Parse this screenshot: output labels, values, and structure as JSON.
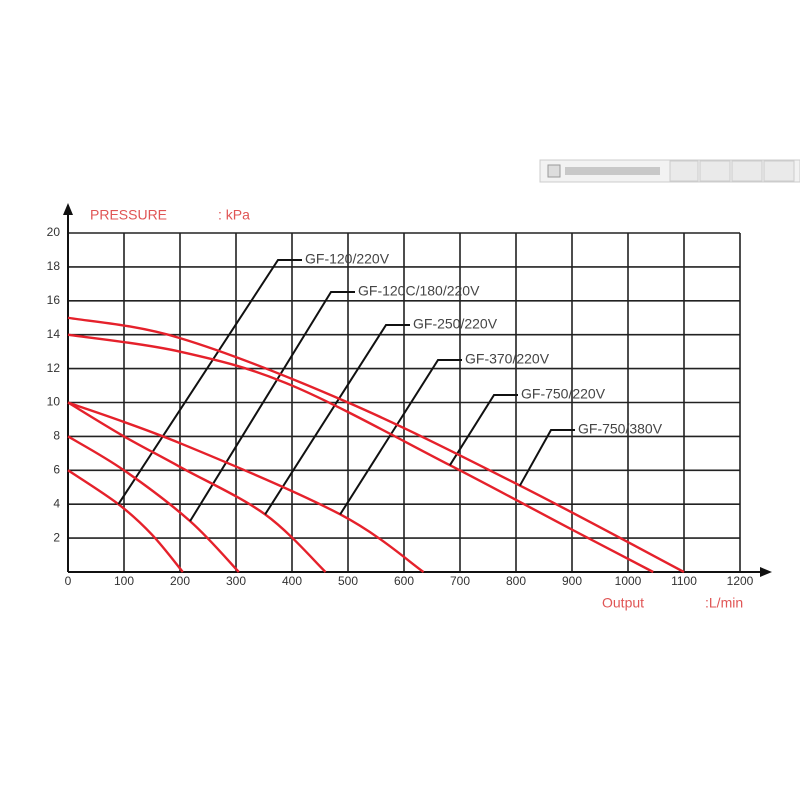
{
  "chart_data": {
    "type": "line",
    "y_label": "PRESSURE",
    "y_unit": ": kPa",
    "x_label": "Output",
    "x_unit": ":L/min",
    "xlim": [
      0,
      1200
    ],
    "xticks": [
      0,
      100,
      200,
      300,
      400,
      500,
      600,
      700,
      800,
      900,
      1000,
      1100,
      1200
    ],
    "ylim": [
      0,
      20
    ],
    "yticks": [
      2,
      4,
      6,
      8,
      10,
      12,
      14,
      16,
      18,
      20
    ],
    "grid": true,
    "series": [
      {
        "name": "GF-120/220V",
        "color": "#e5212b",
        "x": [
          0,
          90,
          150,
          205
        ],
        "values": [
          6,
          4,
          2.2,
          0
        ]
      },
      {
        "name": "GF-120C/180/220V",
        "color": "#e5212b",
        "x": [
          0,
          100,
          218,
          305
        ],
        "values": [
          8,
          6,
          3,
          0
        ]
      },
      {
        "name": "GF-250/220V",
        "color": "#e5212b",
        "x": [
          0,
          100,
          200,
          352,
          460
        ],
        "values": [
          10,
          8,
          6.2,
          3.4,
          0
        ]
      },
      {
        "name": "GF-370/220V",
        "color": "#e5212b",
        "x": [
          0,
          200,
          486,
          635
        ],
        "values": [
          10,
          7.6,
          3.4,
          0
        ]
      },
      {
        "name": "GF-750/220V",
        "color": "#e5212b",
        "x": [
          0,
          200,
          400,
          682,
          900,
          1045
        ],
        "values": [
          14,
          13,
          11,
          6.3,
          2.5,
          0
        ]
      },
      {
        "name": "GF-750/380V",
        "color": "#e5212b",
        "x": [
          0,
          200,
          500,
          807,
          1100
        ],
        "values": [
          15,
          13.8,
          10,
          5.1,
          0
        ]
      }
    ]
  }
}
